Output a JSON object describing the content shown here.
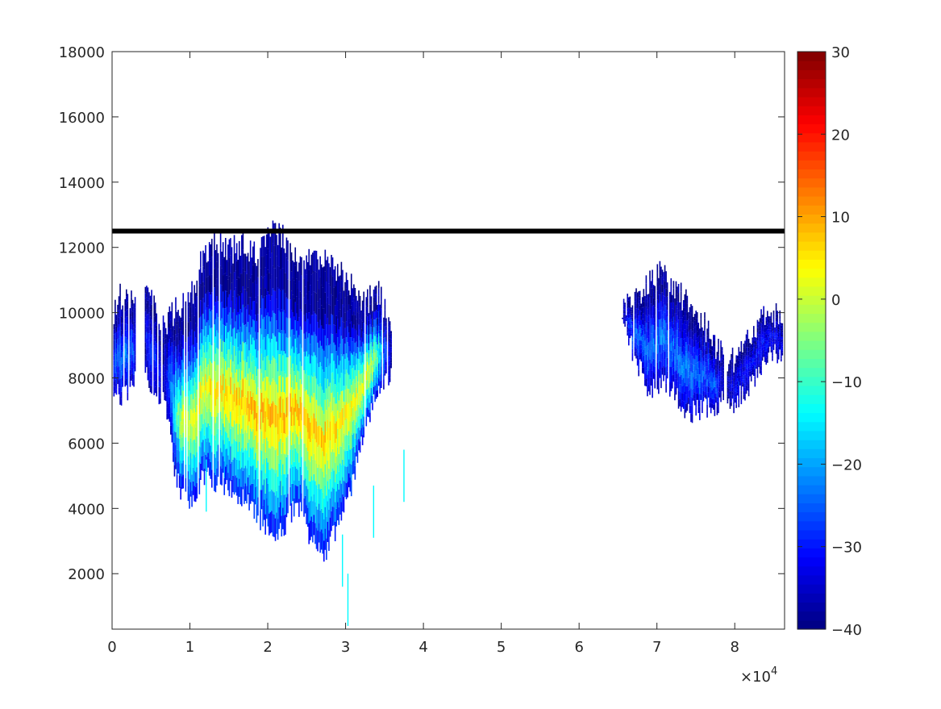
{
  "chart_data": {
    "type": "heatmap",
    "title": "",
    "xlabel": "",
    "ylabel": "",
    "x_exponent_label": "×10",
    "x_exponent_power": "4",
    "xlim": [
      0,
      86400
    ],
    "ylim": [
      300,
      18000
    ],
    "x_ticks": [
      0,
      10000,
      20000,
      30000,
      40000,
      50000,
      60000,
      70000,
      80000
    ],
    "x_tick_labels": [
      "0",
      "1",
      "2",
      "3",
      "4",
      "5",
      "6",
      "7",
      "8"
    ],
    "y_ticks": [
      2000,
      4000,
      6000,
      8000,
      10000,
      12000,
      14000,
      16000,
      18000
    ],
    "y_tick_labels": [
      "2000",
      "4000",
      "6000",
      "8000",
      "10000",
      "12000",
      "14000",
      "16000",
      "18000"
    ],
    "colorbar": {
      "colormap": "jet",
      "clim": [
        -40,
        30
      ],
      "ticks": [
        -40,
        -30,
        -20,
        -10,
        0,
        10,
        20,
        30
      ],
      "tick_labels": [
        "−40",
        "−30",
        "−20",
        "−10",
        "0",
        "10",
        "20",
        "30"
      ]
    },
    "reference_line": {
      "y": 12500,
      "color": "#000000"
    },
    "colors": {
      "axis": "#262626",
      "background": "#ffffff"
    },
    "echo_regions": [
      {
        "x": [
          0,
          3000
        ],
        "y_bottom": [
          7600,
          7400,
          8000
        ],
        "y_top": [
          9800,
          10800,
          10000
        ],
        "peak_value": -22
      },
      {
        "x": [
          4200,
          6200
        ],
        "y_bottom": [
          8200,
          7200
        ],
        "y_top": [
          10800,
          9600
        ],
        "peak_value": -28
      },
      {
        "x": [
          6500,
          35800
        ],
        "y_bottom": [
          7800,
          4800,
          4200,
          5000,
          4800,
          4700,
          4300,
          3800,
          3300,
          3400,
          4200,
          3000,
          2600,
          3500,
          4500,
          6500,
          7500,
          8200
        ],
        "y_top": [
          9600,
          10100,
          10400,
          11800,
          12200,
          11900,
          12100,
          11800,
          12400,
          12300,
          11700,
          11500,
          11600,
          11300,
          10800,
          10300,
          10600,
          9600
        ],
        "peak_value": 10
      },
      {
        "x": [
          65500,
          78500
        ],
        "y_bottom": [
          9800,
          8600,
          7700,
          7800,
          7600,
          6900,
          7000,
          7100,
          7300
        ],
        "y_top": [
          10100,
          10500,
          10900,
          11200,
          10900,
          10300,
          10000,
          9200,
          8600
        ],
        "peak_value": -22
      },
      {
        "x": [
          79000,
          86400
        ],
        "y_bottom": [
          7100,
          7600,
          8600,
          8800
        ],
        "y_top": [
          8400,
          9000,
          10000,
          9800
        ],
        "peak_value": -30
      }
    ],
    "echo_spikes": [
      {
        "x": 30300,
        "y_bottom": 400
      },
      {
        "x": 29600,
        "y_bottom": 1600
      },
      {
        "x": 33600,
        "y_bottom": 3100
      },
      {
        "x": 12100,
        "y_bottom": 3900
      },
      {
        "x": 37500,
        "y_bottom": 4200
      }
    ]
  }
}
